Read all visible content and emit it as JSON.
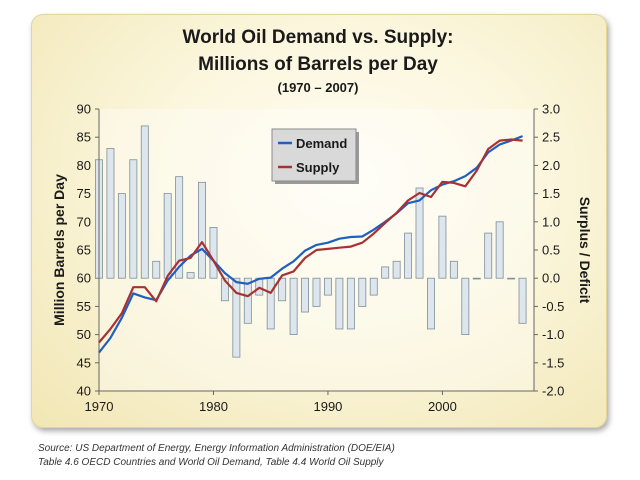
{
  "chart_data": {
    "type": "line",
    "title_line1": "World Oil Demand vs. Supply:",
    "title_line2": "Millions of Barrels per Day",
    "subtitle": "(1970 – 2007)",
    "ylabel": "Million Barrels per Day",
    "y2label": "Surplus / Deficit",
    "xlim": [
      1970,
      2008
    ],
    "ylim": [
      40,
      90
    ],
    "y2lim": [
      -2.0,
      3.0
    ],
    "x_ticks": [
      1970,
      1980,
      1990,
      2000
    ],
    "y_ticks": [
      40,
      45,
      50,
      55,
      60,
      65,
      70,
      75,
      80,
      85,
      90
    ],
    "y2_ticks": [
      "-2.0",
      "-1.5",
      "-1.0",
      "-0.5",
      "0.0",
      "0.5",
      "1.0",
      "1.5",
      "2.0",
      "2.5",
      "3.0"
    ],
    "legend_position": "top-center",
    "x": [
      1970,
      1971,
      1972,
      1973,
      1974,
      1975,
      1976,
      1977,
      1978,
      1979,
      1980,
      1981,
      1982,
      1983,
      1984,
      1985,
      1986,
      1987,
      1988,
      1989,
      1990,
      1991,
      1992,
      1993,
      1994,
      1995,
      1996,
      1997,
      1998,
      1999,
      2000,
      2001,
      2002,
      2003,
      2004,
      2005,
      2006,
      2007
    ],
    "series": [
      {
        "name": "Demand",
        "color": "#1f5fbf",
        "values": [
          46.8,
          49.4,
          53.0,
          57.3,
          56.6,
          56.1,
          59.6,
          62.0,
          64.0,
          65.2,
          63.1,
          60.9,
          59.3,
          59.0,
          59.9,
          60.1,
          61.7,
          63.0,
          64.9,
          65.9,
          66.3,
          67.0,
          67.3,
          67.4,
          68.6,
          70.0,
          71.5,
          73.3,
          73.8,
          75.6,
          76.6,
          77.2,
          78.1,
          79.6,
          82.3,
          83.7,
          84.4,
          85.2
        ]
      },
      {
        "name": "Supply",
        "color": "#a83232",
        "values": [
          48.6,
          51.0,
          53.8,
          58.4,
          58.4,
          55.9,
          60.4,
          63.1,
          63.6,
          66.4,
          63.1,
          59.6,
          57.4,
          56.8,
          58.3,
          57.4,
          60.5,
          61.2,
          63.6,
          65.0,
          65.2,
          65.4,
          65.6,
          66.3,
          67.9,
          69.8,
          71.6,
          73.8,
          75.1,
          74.4,
          77.1,
          76.9,
          76.3,
          79.1,
          82.9,
          84.4,
          84.6,
          84.4
        ]
      }
    ],
    "bars": {
      "name": "Surplus / Deficit",
      "values": [
        2.1,
        2.3,
        1.5,
        2.1,
        2.7,
        0.3,
        1.5,
        1.8,
        0.1,
        1.7,
        0.9,
        -0.4,
        -1.4,
        -0.8,
        -0.3,
        -0.9,
        -0.4,
        -1.0,
        -0.6,
        -0.5,
        -0.3,
        -0.9,
        -0.9,
        -0.5,
        -0.3,
        0.2,
        0.3,
        0.8,
        1.6,
        -0.9,
        1.1,
        0.3,
        -1.0,
        0.0,
        0.8,
        1.0,
        0.0,
        -0.8
      ]
    }
  },
  "source_note": {
    "line1": "Source: US Department of Energy, Energy Information Administration (DOE/EIA)",
    "line2": "Table 4.6 OECD Countries and World Oil Demand, Table 4.4 World Oil Supply"
  }
}
